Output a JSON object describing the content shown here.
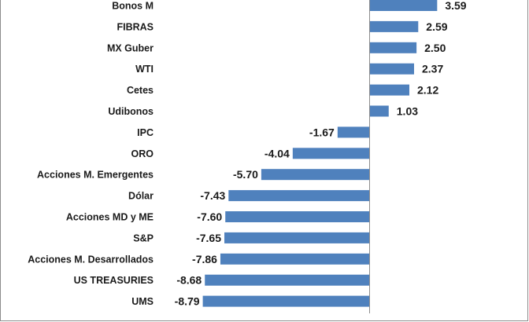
{
  "chart_data": {
    "type": "bar",
    "orientation": "horizontal",
    "categories": [
      "Bonos M",
      "FIBRAS",
      "MX Guber",
      "WTI",
      "Cetes",
      "Udibonos",
      "IPC",
      "ORO",
      "Acciones M. Emergentes",
      "Dólar",
      "Acciones MD y ME",
      "S&P",
      "Acciones M. Desarrollados",
      "US TREASURIES",
      "UMS"
    ],
    "values": [
      3.59,
      2.59,
      2.5,
      2.37,
      2.12,
      1.03,
      -1.67,
      -4.04,
      -5.7,
      -7.43,
      -7.6,
      -7.65,
      -7.86,
      -8.68,
      -8.79
    ],
    "value_labels": [
      "3.59",
      "2.59",
      "2.50",
      "2.37",
      "2.12",
      "1.03",
      "-1.67",
      "-4.04",
      "-5.70",
      "-7.43",
      "-7.60",
      "-7.65",
      "-7.86",
      "-8.68",
      "-8.79"
    ],
    "bar_color": "#4f81bd",
    "grid": false,
    "legend": "none"
  }
}
